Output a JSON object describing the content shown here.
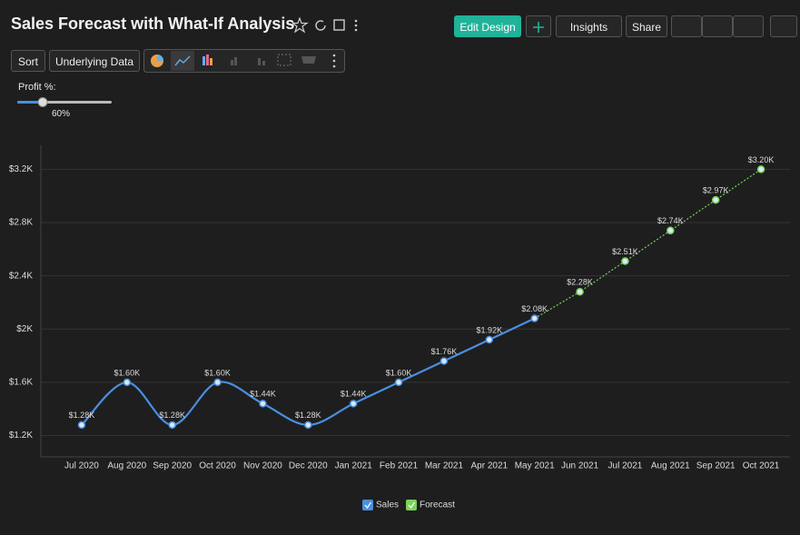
{
  "header": {
    "title": "Sales Forecast with What-If Analysis",
    "buttons": [
      "Edit Design",
      "Insights",
      "Share"
    ]
  },
  "toolbar": {
    "buttons": [
      "Sort",
      "Underlying Data"
    ]
  },
  "slider": {
    "label": "Profit %:",
    "value": "60%"
  },
  "chart_data": {
    "type": "line",
    "categories": [
      "Jul 2020",
      "Aug 2020",
      "Sep 2020",
      "Oct 2020",
      "Nov 2020",
      "Dec 2020",
      "Jan 2021",
      "Feb 2021",
      "Mar 2021",
      "Apr 2021",
      "May 2021",
      "Jun 2021",
      "Jul 2021",
      "Aug 2021",
      "Sep 2021",
      "Oct 2021"
    ],
    "series": [
      {
        "name": "Sales",
        "color": "#4a8fe0",
        "style": "smooth",
        "values": [
          1280,
          1600,
          1280,
          1600,
          1440,
          1280,
          1440,
          1600,
          1760,
          1920,
          2080,
          null,
          null,
          null,
          null,
          null
        ],
        "value_labels": [
          "$1.28K",
          "$1.60K",
          "$1.28K",
          "$1.60K",
          "$1.44K",
          "$1.28K",
          "$1.44K",
          "$1.60K",
          "$1.76K",
          "$1.92K",
          "$2.08K",
          null,
          null,
          null,
          null,
          null
        ]
      },
      {
        "name": "Forecast",
        "color": "#7bd35a",
        "style": "dotted",
        "values": [
          null,
          null,
          null,
          null,
          null,
          null,
          null,
          null,
          null,
          null,
          2080,
          2280,
          2510,
          2740,
          2970,
          3200
        ],
        "value_labels": [
          null,
          null,
          null,
          null,
          null,
          null,
          null,
          null,
          null,
          null,
          null,
          "$2.28K",
          "$2.51K",
          "$2.74K",
          "$2.97K",
          "$3.20K"
        ]
      }
    ],
    "ylim": [
      1040,
      3380
    ],
    "yticks": [
      {
        "value": 1200,
        "label": "$1.2K"
      },
      {
        "value": 1600,
        "label": "$1.6K"
      },
      {
        "value": 2000,
        "label": "$2K"
      },
      {
        "value": 2400,
        "label": "$2.4K"
      },
      {
        "value": 2800,
        "label": "$2.8K"
      },
      {
        "value": 3200,
        "label": "$3.2K"
      }
    ],
    "grid": true
  }
}
